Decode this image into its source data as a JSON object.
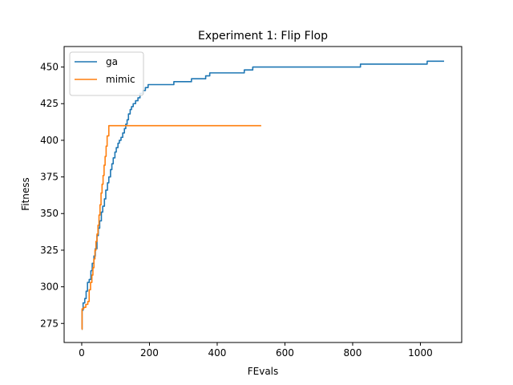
{
  "chart_data": {
    "type": "line",
    "title": "Experiment 1: Flip Flop",
    "xlabel": "FEvals",
    "ylabel": "Fitness",
    "xlim": [
      -52,
      1122
    ],
    "ylim": [
      262,
      464
    ],
    "xticks": [
      0,
      200,
      400,
      600,
      800,
      1000
    ],
    "yticks": [
      275,
      300,
      325,
      350,
      375,
      400,
      425,
      450
    ],
    "grid": false,
    "legend_position": "top-left",
    "series": [
      {
        "name": "ga",
        "color": "#1f77b4",
        "step": true,
        "points": [
          [
            0,
            271
          ],
          [
            1,
            284
          ],
          [
            4,
            289
          ],
          [
            9,
            292
          ],
          [
            13,
            297
          ],
          [
            17,
            303
          ],
          [
            22,
            305
          ],
          [
            27,
            311
          ],
          [
            31,
            316
          ],
          [
            36,
            321
          ],
          [
            40,
            326
          ],
          [
            45,
            335
          ],
          [
            49,
            340
          ],
          [
            53,
            345
          ],
          [
            58,
            351
          ],
          [
            62,
            355
          ],
          [
            67,
            360
          ],
          [
            71,
            366
          ],
          [
            76,
            371
          ],
          [
            80,
            375
          ],
          [
            85,
            380
          ],
          [
            89,
            384
          ],
          [
            93,
            388
          ],
          [
            98,
            392
          ],
          [
            102,
            395
          ],
          [
            107,
            398
          ],
          [
            111,
            400
          ],
          [
            116,
            402
          ],
          [
            121,
            405
          ],
          [
            126,
            408
          ],
          [
            130,
            411
          ],
          [
            134,
            414
          ],
          [
            138,
            418
          ],
          [
            143,
            421
          ],
          [
            147,
            423
          ],
          [
            152,
            425
          ],
          [
            159,
            427
          ],
          [
            166,
            429
          ],
          [
            172,
            432
          ],
          [
            180,
            434
          ],
          [
            188,
            436
          ],
          [
            196,
            438
          ],
          [
            272,
            440
          ],
          [
            324,
            442
          ],
          [
            366,
            444
          ],
          [
            378,
            446
          ],
          [
            480,
            448
          ],
          [
            505,
            450
          ],
          [
            823,
            452
          ],
          [
            1020,
            454
          ],
          [
            1070,
            454
          ]
        ]
      },
      {
        "name": "mimic",
        "color": "#ff7f0e",
        "step": true,
        "points": [
          [
            0,
            271
          ],
          [
            1,
            285
          ],
          [
            6,
            286
          ],
          [
            12,
            288
          ],
          [
            18,
            290
          ],
          [
            22,
            298
          ],
          [
            26,
            303
          ],
          [
            30,
            308
          ],
          [
            33,
            313
          ],
          [
            36,
            319
          ],
          [
            39,
            325
          ],
          [
            42,
            331
          ],
          [
            45,
            336
          ],
          [
            48,
            342
          ],
          [
            51,
            349
          ],
          [
            54,
            356
          ],
          [
            57,
            364
          ],
          [
            60,
            370
          ],
          [
            63,
            376
          ],
          [
            66,
            383
          ],
          [
            69,
            389
          ],
          [
            72,
            396
          ],
          [
            75,
            403
          ],
          [
            80,
            410
          ],
          [
            530,
            410
          ]
        ]
      }
    ]
  }
}
